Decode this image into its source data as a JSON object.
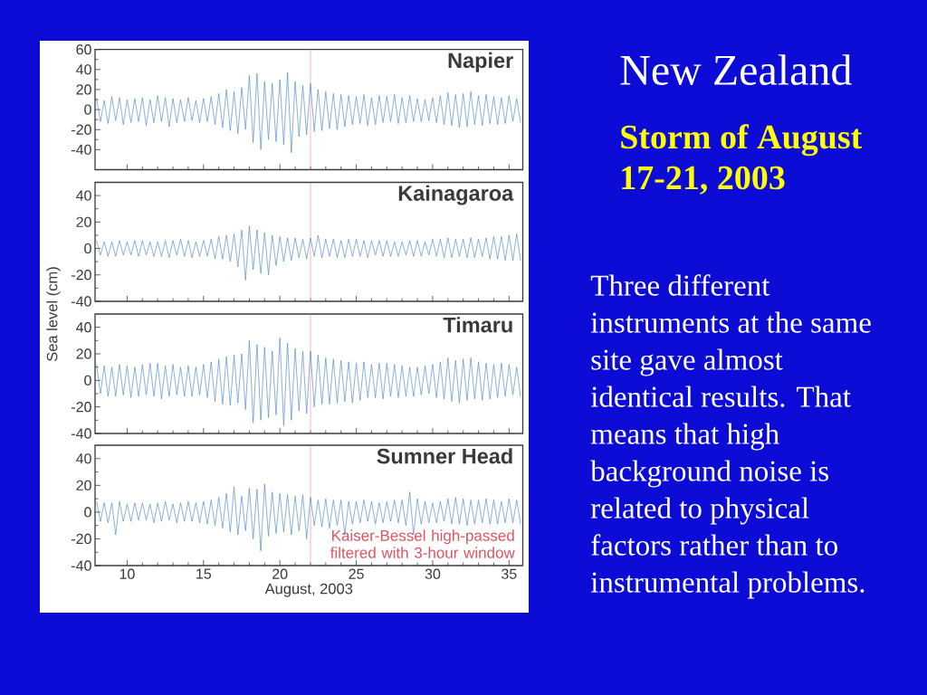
{
  "chart_data": [
    {
      "type": "line",
      "title": "Napier",
      "x": [
        8,
        8.25,
        8.5,
        8.75,
        9,
        9.25,
        9.5,
        9.75,
        10,
        10.25,
        10.5,
        10.75,
        11,
        11.25,
        11.5,
        11.75,
        12,
        12.25,
        12.5,
        12.75,
        13,
        13.25,
        13.5,
        13.75,
        14,
        14.25,
        14.5,
        14.75,
        15,
        15.25,
        15.5,
        15.75,
        16,
        16.25,
        16.5,
        16.75,
        17,
        17.25,
        17.5,
        17.75,
        18,
        18.25,
        18.5,
        18.75,
        19,
        19.25,
        19.5,
        19.75,
        20,
        20.25,
        20.5,
        20.75,
        21,
        21.25,
        21.5,
        21.75,
        22,
        22.25,
        22.5,
        22.75,
        23,
        23.25,
        23.5,
        23.75,
        24,
        24.25,
        24.5,
        24.75,
        25,
        25.25,
        25.5,
        25.75,
        26,
        26.25,
        26.5,
        26.75,
        27,
        27.25,
        27.5,
        27.75,
        28,
        28.25,
        28.5,
        28.75,
        29,
        29.25,
        29.5,
        29.75,
        30,
        30.25,
        30.5,
        30.75,
        31,
        31.25,
        31.5,
        31.75,
        32,
        32.25,
        32.5,
        32.75,
        33,
        33.25,
        33.5,
        33.75,
        34,
        34.25,
        34.5,
        34.75,
        35,
        35.25,
        35.5,
        35.75
      ],
      "values": [
        11,
        -12,
        9,
        -14,
        13,
        -11,
        12,
        -15,
        10,
        -13,
        11,
        -12,
        12,
        -16,
        10,
        -13,
        14,
        -12,
        12,
        -17,
        11,
        -13,
        10,
        -12,
        12,
        -11,
        9,
        -13,
        11,
        -12,
        13,
        -15,
        16,
        -18,
        20,
        -21,
        18,
        -24,
        22,
        -20,
        34,
        -33,
        36,
        -40,
        28,
        -30,
        26,
        -32,
        30,
        -35,
        37,
        -43,
        28,
        -27,
        24,
        -25,
        26,
        -22,
        20,
        -21,
        18,
        -19,
        16,
        -20,
        15,
        -17,
        14,
        -15,
        13,
        -14,
        15,
        -16,
        12,
        -15,
        14,
        -13,
        13,
        -12,
        15,
        -14,
        12,
        -13,
        14,
        -12,
        11,
        -12,
        10,
        -11,
        12,
        -13,
        14,
        -15,
        17,
        -16,
        15,
        -18,
        16,
        -17,
        18,
        -15,
        14,
        -16,
        15,
        -14,
        13,
        -15,
        12,
        -14,
        14,
        -12,
        11,
        -13
      ],
      "color": "#3c7dc6",
      "xlim": [
        7.9,
        35.9
      ],
      "ylim": [
        -60,
        60
      ],
      "xticks": [
        10,
        15,
        20,
        25,
        30,
        35
      ],
      "yticks": [
        -40,
        -20,
        0,
        20,
        40,
        60
      ],
      "ref_lines": [
        {
          "axis": "x",
          "value": 22,
          "color": "#e58a98"
        }
      ],
      "tick_labels": "y"
    },
    {
      "type": "line",
      "title": "Kainagaroa",
      "x": [
        8,
        8.25,
        8.5,
        8.75,
        9,
        9.25,
        9.5,
        9.75,
        10,
        10.25,
        10.5,
        10.75,
        11,
        11.25,
        11.5,
        11.75,
        12,
        12.25,
        12.5,
        12.75,
        13,
        13.25,
        13.5,
        13.75,
        14,
        14.25,
        14.5,
        14.75,
        15,
        15.25,
        15.5,
        15.75,
        16,
        16.25,
        16.5,
        16.75,
        17,
        17.25,
        17.5,
        17.75,
        18,
        18.25,
        18.5,
        18.75,
        19,
        19.25,
        19.5,
        19.75,
        20,
        20.25,
        20.5,
        20.75,
        21,
        21.25,
        21.5,
        21.75,
        22,
        22.25,
        22.5,
        22.75,
        23,
        23.25,
        23.5,
        23.75,
        24,
        24.25,
        24.5,
        24.75,
        25,
        25.25,
        25.5,
        25.75,
        26,
        26.25,
        26.5,
        26.75,
        27,
        27.25,
        27.5,
        27.75,
        28,
        28.25,
        28.5,
        28.75,
        29,
        29.25,
        29.5,
        29.75,
        30,
        30.25,
        30.5,
        30.75,
        31,
        31.25,
        31.5,
        31.75,
        32,
        32.25,
        32.5,
        32.75,
        33,
        33.25,
        33.5,
        33.75,
        34,
        34.25,
        34.5,
        34.75,
        35,
        35.25,
        35.5,
        35.75
      ],
      "values": [
        6,
        -5,
        5,
        -6,
        5,
        -6,
        6,
        -5,
        5,
        -5,
        6,
        -6,
        6,
        -5,
        5,
        -6,
        5,
        -6,
        6,
        -7,
        6,
        -5,
        7,
        -6,
        6,
        -7,
        5,
        -6,
        6,
        -6,
        7,
        -8,
        9,
        -8,
        10,
        -10,
        11,
        -14,
        14,
        -24,
        17,
        -16,
        14,
        -19,
        12,
        -20,
        10,
        -13,
        9,
        -10,
        8,
        -9,
        8,
        -7,
        7,
        -8,
        8,
        -6,
        10,
        -7,
        7,
        -6,
        7,
        -7,
        6,
        -7,
        7,
        -6,
        7,
        -6,
        6,
        -7,
        6,
        -5,
        6,
        -6,
        6,
        -6,
        5,
        -6,
        5,
        -5,
        6,
        -6,
        6,
        -6,
        5,
        -5,
        7,
        -6,
        7,
        -7,
        8,
        -7,
        7,
        -6,
        7,
        -7,
        8,
        -7,
        7,
        -6,
        8,
        -8,
        9,
        -8,
        9,
        -9,
        10,
        -9,
        11,
        -9
      ],
      "color": "#3c7dc6",
      "xlim": [
        7.9,
        35.9
      ],
      "ylim": [
        -40,
        50
      ],
      "xticks": [
        10,
        15,
        20,
        25,
        30,
        35
      ],
      "yticks": [
        -40,
        -20,
        0,
        20,
        40
      ],
      "ref_lines": [
        {
          "axis": "x",
          "value": 22,
          "color": "#e58a98"
        }
      ],
      "tick_labels": "y"
    },
    {
      "type": "line",
      "title": "Timaru",
      "ylabel": "Sea level (cm)",
      "x": [
        8,
        8.25,
        8.5,
        8.75,
        9,
        9.25,
        9.5,
        9.75,
        10,
        10.25,
        10.5,
        10.75,
        11,
        11.25,
        11.5,
        11.75,
        12,
        12.25,
        12.5,
        12.75,
        13,
        13.25,
        13.5,
        13.75,
        14,
        14.25,
        14.5,
        14.75,
        15,
        15.25,
        15.5,
        15.75,
        16,
        16.25,
        16.5,
        16.75,
        17,
        17.25,
        17.5,
        17.75,
        18,
        18.25,
        18.5,
        18.75,
        19,
        19.25,
        19.5,
        19.75,
        20,
        20.25,
        20.5,
        20.75,
        21,
        21.25,
        21.5,
        21.75,
        22,
        22.25,
        22.5,
        22.75,
        23,
        23.25,
        23.5,
        23.75,
        24,
        24.25,
        24.5,
        24.75,
        25,
        25.25,
        25.5,
        25.75,
        26,
        26.25,
        26.5,
        26.75,
        27,
        27.25,
        27.5,
        27.75,
        28,
        28.25,
        28.5,
        28.75,
        29,
        29.25,
        29.5,
        29.75,
        30,
        30.25,
        30.5,
        30.75,
        31,
        31.25,
        31.5,
        31.75,
        32,
        32.25,
        32.5,
        32.75,
        33,
        33.25,
        33.5,
        33.75,
        34,
        34.25,
        34.5,
        34.75,
        35,
        35.25,
        35.5,
        35.75
      ],
      "values": [
        12,
        -10,
        11,
        -12,
        10,
        -12,
        12,
        -11,
        11,
        -13,
        10,
        -12,
        12,
        -11,
        13,
        -12,
        13,
        -14,
        11,
        -12,
        12,
        -11,
        10,
        -12,
        11,
        -12,
        10,
        -11,
        12,
        -13,
        14,
        -16,
        16,
        -18,
        18,
        -19,
        19,
        -17,
        20,
        -22,
        30,
        -32,
        27,
        -30,
        25,
        -28,
        22,
        -26,
        32,
        -34,
        28,
        -30,
        24,
        -23,
        22,
        -25,
        22,
        -20,
        19,
        -18,
        17,
        -18,
        16,
        -17,
        15,
        -16,
        14,
        -17,
        13,
        -15,
        14,
        -13,
        12,
        -13,
        13,
        -14,
        13,
        -12,
        12,
        -13,
        11,
        -12,
        10,
        -12,
        10,
        -11,
        11,
        -10,
        12,
        -13,
        14,
        -14,
        17,
        -16,
        15,
        -17,
        16,
        -15,
        17,
        -14,
        14,
        -15,
        13,
        -14,
        12,
        -13,
        13,
        -12,
        12,
        -11,
        10,
        -12
      ],
      "color": "#3c7dc6",
      "xlim": [
        7.9,
        35.9
      ],
      "ylim": [
        -40,
        50
      ],
      "xticks": [
        10,
        15,
        20,
        25,
        30,
        35
      ],
      "yticks": [
        -40,
        -20,
        0,
        20,
        40
      ],
      "ref_lines": [
        {
          "axis": "x",
          "value": 22,
          "color": "#e58a98"
        }
      ],
      "tick_labels": "y"
    },
    {
      "type": "line",
      "title": "Sumner Head",
      "xlabel": "August, 2003",
      "x": [
        8,
        8.25,
        8.5,
        8.75,
        9,
        9.25,
        9.5,
        9.75,
        10,
        10.25,
        10.5,
        10.75,
        11,
        11.25,
        11.5,
        11.75,
        12,
        12.25,
        12.5,
        12.75,
        13,
        13.25,
        13.5,
        13.75,
        14,
        14.25,
        14.5,
        14.75,
        15,
        15.25,
        15.5,
        15.75,
        16,
        16.25,
        16.5,
        16.75,
        17,
        17.25,
        17.5,
        17.75,
        18,
        18.25,
        18.5,
        18.75,
        19,
        19.25,
        19.5,
        19.75,
        20,
        20.25,
        20.5,
        20.75,
        21,
        21.25,
        21.5,
        21.75,
        22,
        22.25,
        22.5,
        22.75,
        23,
        23.25,
        23.5,
        23.75,
        24,
        24.25,
        24.5,
        24.75,
        25,
        25.25,
        25.5,
        25.75,
        26,
        26.25,
        26.5,
        26.75,
        27,
        27.25,
        27.5,
        27.75,
        28,
        28.25,
        28.5,
        28.75,
        29,
        29.25,
        29.5,
        29.75,
        30,
        30.25,
        30.5,
        30.75,
        31,
        31.25,
        31.5,
        31.75,
        32,
        32.25,
        32.5,
        32.75,
        33,
        33.25,
        33.5,
        33.75,
        34,
        34.25,
        34.5,
        34.75,
        35,
        35.25,
        35.5,
        35.75
      ],
      "values": [
        8,
        -7,
        7,
        -8,
        7,
        -17,
        8,
        -7,
        6,
        -7,
        7,
        -6,
        7,
        -6,
        6,
        -8,
        7,
        -7,
        8,
        -6,
        6,
        -8,
        7,
        -7,
        8,
        -7,
        7,
        -8,
        8,
        -9,
        9,
        -10,
        11,
        -12,
        14,
        -15,
        19,
        -17,
        12,
        -14,
        18,
        -20,
        17,
        -29,
        21,
        -18,
        15,
        -16,
        14,
        -15,
        13,
        -17,
        12,
        -14,
        13,
        -20,
        11,
        -10,
        9,
        -11,
        10,
        -12,
        9,
        -10,
        9,
        -17,
        8,
        -9,
        8,
        -8,
        9,
        -7,
        8,
        -9,
        7,
        -8,
        8,
        -7,
        9,
        -8,
        9,
        -10,
        15,
        -17,
        10,
        -9,
        8,
        -8,
        7,
        -8,
        8,
        -7,
        10,
        -9,
        11,
        -9,
        10,
        -10,
        9,
        -9,
        9,
        -8,
        10,
        -9,
        9,
        -9,
        8,
        -8,
        10,
        -8,
        9,
        -9
      ],
      "color": "#3c7dc6",
      "xlim": [
        7.9,
        35.9
      ],
      "ylim": [
        -40,
        50
      ],
      "xticks": [
        10,
        15,
        20,
        25,
        30,
        35
      ],
      "yticks": [
        -40,
        -20,
        0,
        20,
        40
      ],
      "ref_lines": [
        {
          "axis": "x",
          "value": 22,
          "color": "#e58a98"
        }
      ],
      "annotations": [
        "Kaiser-Bessel high-passed filtered with 3-hour window"
      ]
    },
    {
      "type": "other",
      "title": "New Zealand",
      "subtitle": "Storm of August 17-21, 2003",
      "annotations": [
        "Three different instruments at the same site gave almost identical results. That means that high background noise is related to physical factors rather than to instrumental problems."
      ]
    }
  ]
}
